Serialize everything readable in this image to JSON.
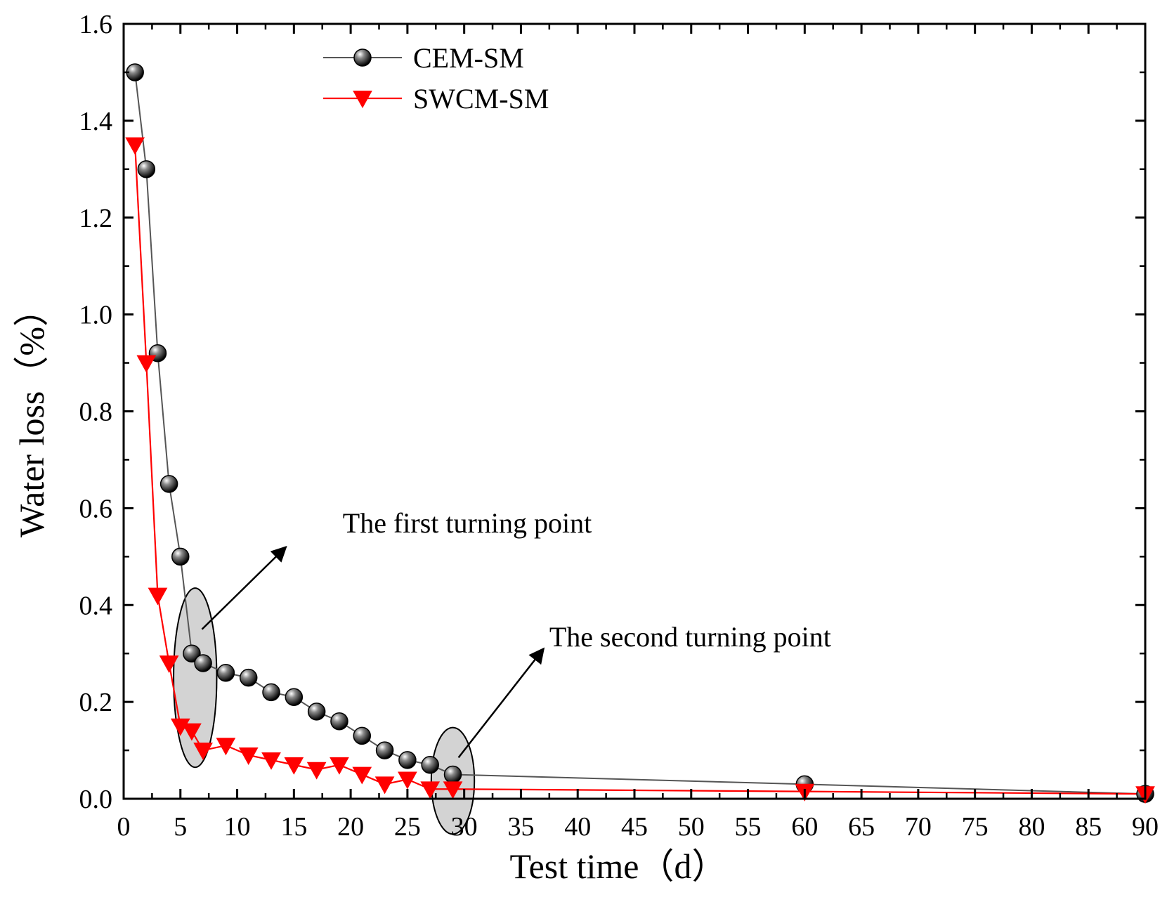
{
  "chart_data": {
    "type": "line",
    "title": "",
    "xlabel": "Test time（d）",
    "ylabel": "Water loss（%）",
    "xlim": [
      0,
      90
    ],
    "ylim": [
      0,
      1.6
    ],
    "xticks": [
      0,
      5,
      10,
      15,
      20,
      25,
      30,
      35,
      40,
      45,
      50,
      55,
      60,
      65,
      70,
      75,
      80,
      85,
      90
    ],
    "yticks": [
      0.0,
      0.2,
      0.4,
      0.6,
      0.8,
      1.0,
      1.2,
      1.4,
      1.6
    ],
    "ytick_labels": [
      "0.0",
      "0.2",
      "0.4",
      "0.6",
      "0.8",
      "1.0",
      "1.2",
      "1.4",
      "1.6"
    ],
    "grid": false,
    "legend_position": "top-left",
    "series": [
      {
        "name": "CEM-SM",
        "color": "#555555",
        "marker": "sphere",
        "x": [
          1,
          2,
          3,
          4,
          5,
          6,
          7,
          9,
          11,
          13,
          15,
          17,
          19,
          21,
          23,
          25,
          27,
          29,
          60,
          90
        ],
        "y": [
          1.5,
          1.3,
          0.92,
          0.65,
          0.5,
          0.3,
          0.28,
          0.26,
          0.25,
          0.22,
          0.21,
          0.18,
          0.16,
          0.13,
          0.1,
          0.08,
          0.07,
          0.05,
          0.03,
          0.01
        ]
      },
      {
        "name": "SWCM-SM",
        "color": "#ff0000",
        "marker": "triangle-down",
        "x": [
          1,
          2,
          3,
          4,
          5,
          6,
          7,
          9,
          11,
          13,
          15,
          17,
          19,
          21,
          23,
          25,
          27,
          29,
          60,
          90
        ],
        "y": [
          1.35,
          0.9,
          0.42,
          0.28,
          0.15,
          0.14,
          0.1,
          0.11,
          0.09,
          0.08,
          0.07,
          0.06,
          0.07,
          0.05,
          0.03,
          0.04,
          0.02,
          0.02,
          0.015,
          0.01
        ]
      }
    ],
    "annotations": [
      {
        "text": "The first turning point",
        "ellipse_center": [
          6.3,
          0.25
        ],
        "ellipse_radii": [
          1.9,
          0.185
        ],
        "arrow_from": [
          6.9,
          0.35
        ],
        "arrow_to": [
          14.3,
          0.52
        ],
        "label_at": [
          19.3,
          0.55
        ]
      },
      {
        "text": "The second turning point",
        "ellipse_center": [
          29,
          0.037
        ],
        "ellipse_radii": [
          1.9,
          0.11
        ],
        "arrow_from": [
          29.5,
          0.085
        ],
        "arrow_to": [
          37,
          0.31
        ],
        "label_at": [
          37.5,
          0.315
        ]
      }
    ]
  }
}
